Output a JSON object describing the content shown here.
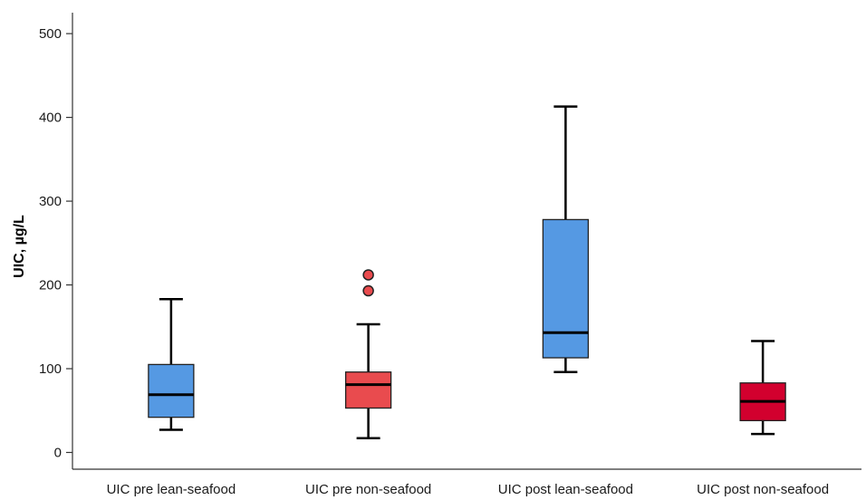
{
  "chart_data": {
    "type": "boxplot",
    "title": "",
    "xlabel": "",
    "ylabel": "UIC, µg/L",
    "ylim": [
      -20,
      525
    ],
    "yticks": [
      0,
      100,
      200,
      300,
      400,
      500
    ],
    "grid": false,
    "legend": "none",
    "categories": [
      "UIC pre lean-seafood",
      "UIC pre non-seafood",
      "UIC post lean-seafood",
      "UIC post non-seafood"
    ],
    "boxes": [
      {
        "min": 27,
        "q1": 42,
        "median": 69,
        "q3": 105,
        "max": 183,
        "outliers": [],
        "color": "#5599E3"
      },
      {
        "min": 17,
        "q1": 53,
        "median": 81,
        "q3": 96,
        "max": 153,
        "outliers": [
          193,
          212
        ],
        "color": "#E94B4E"
      },
      {
        "min": 96,
        "q1": 113,
        "median": 143,
        "q3": 278,
        "max": 413,
        "outliers": [],
        "color": "#5599E3"
      },
      {
        "min": 22,
        "q1": 38,
        "median": 61,
        "q3": 83,
        "max": 133,
        "outliers": [],
        "color": "#D2002E"
      }
    ]
  }
}
